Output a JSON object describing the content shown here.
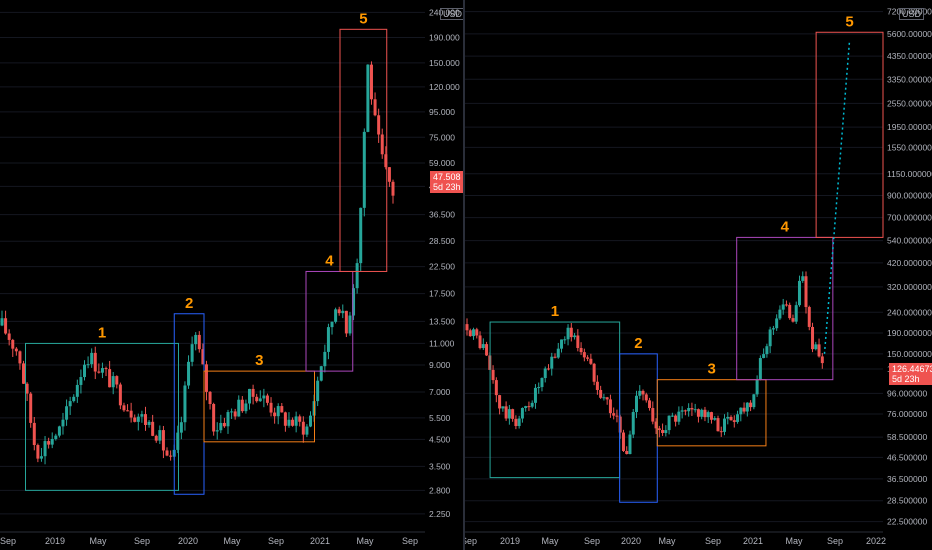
{
  "theme": {
    "bg": "#000000",
    "up": "#26a69a",
    "down": "#ef5350",
    "axis_text": "#b2b5be"
  },
  "chart_data": [
    {
      "type": "candlestick",
      "panel": "left",
      "currency": "USD",
      "scale": "log",
      "x_ticks": [
        "Sep",
        "2019",
        "May",
        "Sep",
        "2020",
        "May",
        "Sep",
        "2021",
        "May",
        "Sep"
      ],
      "y_ticks": [
        "240.000",
        "190.000",
        "150.000",
        "120.000",
        "95.000",
        "75.000",
        "59.000",
        "47.508",
        "36.500",
        "28.500",
        "22.500",
        "17.500",
        "13.500",
        "11.000",
        "9.000",
        "7.000",
        "5.500",
        "4.500",
        "3.500",
        "2.800",
        "2.250"
      ],
      "y_tick_values": [
        240,
        190,
        150,
        120,
        95,
        75,
        59,
        47.508,
        36.5,
        28.5,
        22.5,
        17.5,
        13.5,
        11,
        9,
        7,
        5.5,
        4.5,
        3.5,
        2.8,
        2.25
      ],
      "ylim": [
        1.9,
        250
      ],
      "last_price": "47.508",
      "countdown": "5d 23h",
      "boxes": [
        {
          "label": "1",
          "color": "#26a69a",
          "x": [
            0.06,
            0.42
          ],
          "y": [
            2.8,
            11.0
          ]
        },
        {
          "label": "2",
          "color": "#2962ff",
          "x": [
            0.41,
            0.48
          ],
          "y": [
            2.7,
            14.5
          ]
        },
        {
          "label": "3",
          "color": "#f57f17",
          "x": [
            0.48,
            0.74
          ],
          "y": [
            4.4,
            8.5
          ]
        },
        {
          "label": "4",
          "color": "#ab47bc",
          "x": [
            0.72,
            0.83
          ],
          "y": [
            8.5,
            21.5
          ]
        },
        {
          "label": "5",
          "color": "#ef5350",
          "x": [
            0.8,
            0.91
          ],
          "y": [
            21.5,
            205
          ]
        }
      ]
    },
    {
      "type": "candlestick",
      "panel": "right",
      "currency": "USD",
      "scale": "log",
      "x_ticks": [
        "Sep",
        "2019",
        "May",
        "Sep",
        "2020",
        "May",
        "Sep",
        "2021",
        "May",
        "Sep",
        "2022"
      ],
      "y_ticks": [
        "7200.000000",
        "5600.000000",
        "4350.000000",
        "3350.000000",
        "2550.000000",
        "1950.000000",
        "1550.000000",
        "1150.000000",
        "900.000000",
        "700.000000",
        "540.000000",
        "420.000000",
        "320.000000",
        "240.000000",
        "190.000000",
        "150.000000",
        "126.446732",
        "96.000000",
        "76.000000",
        "58.500000",
        "46.500000",
        "36.500000",
        "28.500000",
        "22.500000"
      ],
      "y_tick_values": [
        7200,
        5600,
        4350,
        3350,
        2550,
        1950,
        1550,
        1150,
        900,
        700,
        540,
        420,
        320,
        240,
        190,
        150,
        126.446732,
        96,
        76,
        58.5,
        46.5,
        36.5,
        28.5,
        22.5
      ],
      "ylim": [
        20,
        7500
      ],
      "last_price": "126.446732",
      "countdown": "5d 23h",
      "boxes": [
        {
          "label": "1",
          "color": "#26a69a",
          "x": [
            0.06,
            0.37
          ],
          "y": [
            37,
            215
          ]
        },
        {
          "label": "2",
          "color": "#2962ff",
          "x": [
            0.37,
            0.46
          ],
          "y": [
            28,
            150
          ]
        },
        {
          "label": "3",
          "color": "#f57f17",
          "x": [
            0.46,
            0.72
          ],
          "y": [
            53,
            112
          ]
        },
        {
          "label": "4",
          "color": "#ab47bc",
          "x": [
            0.65,
            0.88
          ],
          "y": [
            112,
            560
          ]
        },
        {
          "label": "5",
          "color": "#ef5350",
          "x": [
            0.84,
            1.0
          ],
          "y": [
            560,
            5700
          ]
        }
      ]
    }
  ]
}
